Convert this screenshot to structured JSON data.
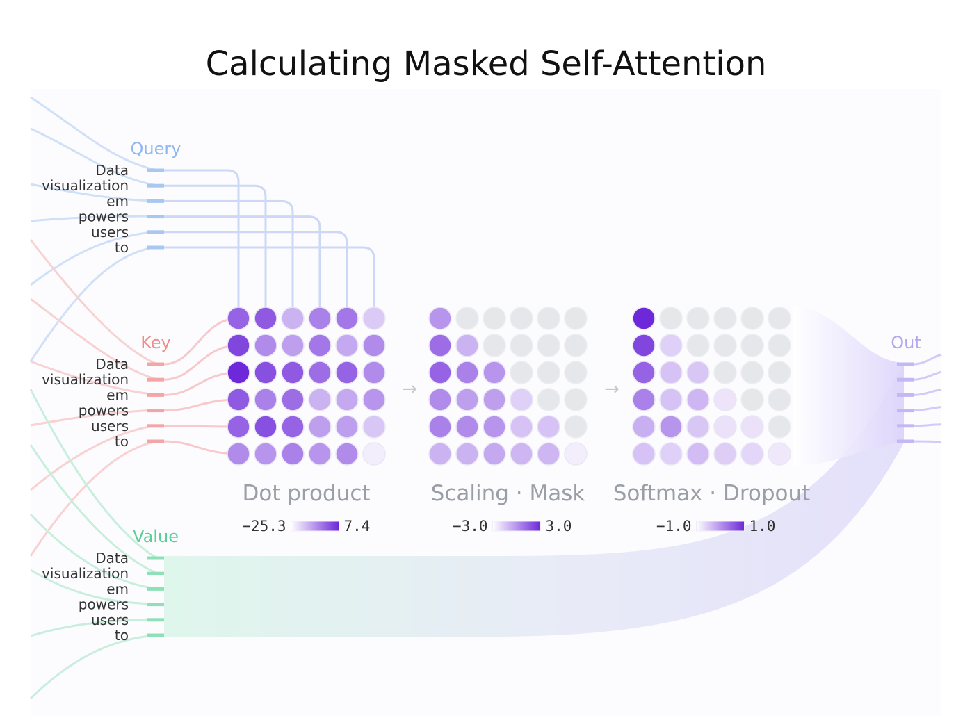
{
  "title": "Calculating Masked Self-Attention",
  "tokens": [
    "Data",
    "visualization",
    "em",
    "powers",
    "users",
    "to"
  ],
  "groups": {
    "query": {
      "label": "Query",
      "color": "#a8c8f0"
    },
    "key": {
      "label": "Key",
      "color": "#f4a6a6"
    },
    "value": {
      "label": "Value",
      "color": "#8ee0b8"
    },
    "out": {
      "label": "Out",
      "color": "#c4b8f4"
    }
  },
  "arrow": "→",
  "colors": {
    "accent": "#6d28d9",
    "masked": "#e5e7eb",
    "stage_label": "#9a9ea6"
  },
  "matrices": [
    {
      "label": "Dot product",
      "legend": {
        "min": "−25.3",
        "max": "7.4"
      },
      "intensity": [
        [
          0.7,
          0.75,
          0.3,
          0.55,
          0.6,
          0.18
        ],
        [
          0.85,
          0.5,
          0.4,
          0.6,
          0.35,
          0.5
        ],
        [
          1.0,
          0.8,
          0.75,
          0.65,
          0.7,
          0.5
        ],
        [
          0.75,
          0.55,
          0.65,
          0.3,
          0.35,
          0.45
        ],
        [
          0.7,
          0.8,
          0.7,
          0.4,
          0.4,
          0.2
        ],
        [
          0.5,
          0.45,
          0.55,
          0.45,
          0.5,
          0.0
        ]
      ]
    },
    {
      "label": "Scaling · Mask",
      "legend": {
        "min": "−3.0",
        "max": "3.0"
      },
      "intensity": [
        [
          0.45,
          null,
          null,
          null,
          null,
          null
        ],
        [
          0.65,
          0.3,
          null,
          null,
          null,
          null
        ],
        [
          0.7,
          0.55,
          0.45,
          null,
          null,
          null
        ],
        [
          0.5,
          0.4,
          0.4,
          0.15,
          null,
          null
        ],
        [
          0.55,
          0.5,
          0.45,
          0.22,
          0.22,
          null
        ],
        [
          0.3,
          0.3,
          0.35,
          0.28,
          0.28,
          0.0
        ]
      ]
    },
    {
      "label": "Softmax · Dropout",
      "legend": {
        "min": "−1.0",
        "max": "1.0"
      },
      "intensity": [
        [
          1.0,
          null,
          null,
          null,
          null,
          null
        ],
        [
          0.85,
          0.15,
          null,
          null,
          null,
          null
        ],
        [
          0.7,
          0.22,
          0.2,
          null,
          null,
          null
        ],
        [
          0.55,
          0.22,
          0.28,
          0.05,
          null,
          null
        ],
        [
          0.32,
          0.45,
          0.2,
          0.06,
          0.06,
          null
        ],
        [
          0.22,
          0.15,
          0.25,
          0.16,
          0.12,
          0.03
        ]
      ]
    }
  ]
}
